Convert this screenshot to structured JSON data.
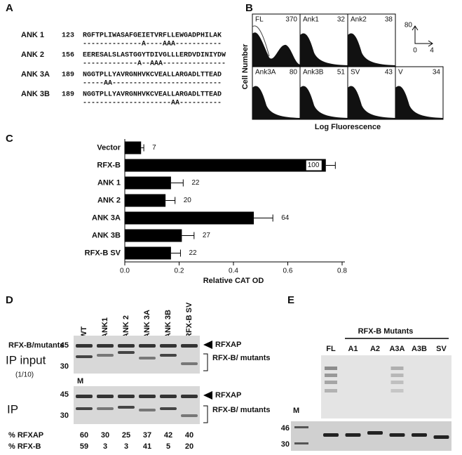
{
  "panel_labels": [
    "A",
    "B",
    "C",
    "D",
    "E"
  ],
  "panel_a": {
    "rows": [
      {
        "name": "ANK 1",
        "start": 123,
        "sequence": "RGFTPLIWASAFGEIETVRFLLEWGADPHILAK",
        "mutations": "--------------A----AAA-----------"
      },
      {
        "name": "ANK 2",
        "start": 156,
        "sequence": "EERESALSLASTGGYTDIVGLLLERDVDINIYDW",
        "mutations": "-------------A--AAA---------------"
      },
      {
        "name": "ANK 3A",
        "start": 189,
        "sequence": "NGGTPLLYAVRGNHVKCVEALLARGADLTTEAD",
        "mutations": "-----AA--------------------------"
      },
      {
        "name": "ANK 3B",
        "start": 189,
        "sequence": "NGGTPLLYAVRGNHVKCVEALLARGADLTTEAD",
        "mutations": "---------------------AA----------"
      }
    ]
  },
  "panel_b": {
    "y_label": "Cell Number",
    "x_label": "Log Fluorescence",
    "scale_y": 80,
    "scale_x_start": 0,
    "scale_x_end": 4,
    "histograms": [
      {
        "name": "FL",
        "count": 370
      },
      {
        "name": "Ank1",
        "count": 32
      },
      {
        "name": "Ank2",
        "count": 38
      },
      {
        "name": "Ank3A",
        "count": 80
      },
      {
        "name": "Ank3B",
        "count": 51
      },
      {
        "name": "SV",
        "count": 43
      },
      {
        "name": "V",
        "count": 34
      }
    ]
  },
  "chart_data": {
    "type": "bar",
    "orientation": "horizontal",
    "x_label": "Relative CAT OD",
    "categories": [
      "Vector",
      "RFX-B",
      "ANK 1",
      "ANK 2",
      "ANK 3A",
      "ANK 3B",
      "RFX-B SV"
    ],
    "values": [
      0.06,
      0.74,
      0.17,
      0.15,
      0.475,
      0.21,
      0.17
    ],
    "errors": [
      0.01,
      0.035,
      0.045,
      0.035,
      0.07,
      0.045,
      0.035
    ],
    "relative_percent": [
      7,
      100,
      22,
      20,
      64,
      27,
      22
    ],
    "color": "#000000",
    "xlim": [
      0,
      0.8
    ],
    "xticks": [
      {
        "value": 0,
        "label": "0.0"
      },
      0.2,
      0.4,
      0.6,
      0.8
    ]
  },
  "panel_d": {
    "construct_label": "RFX-B/mutants",
    "lanes": [
      "WT",
      "ANK1",
      "ANK 2",
      "ANK 3A",
      "ANK 3B",
      "RFX-B SV"
    ],
    "input_label": "IP input",
    "input_fraction": "(1/10)",
    "ip_label": "IP",
    "marker": "M",
    "mw": [
      45,
      30
    ],
    "band_rfxap": "RFXAP",
    "band_rfxb": "RFX-B/ mutants",
    "quant": [
      {
        "label": "% RFXAP",
        "values": [
          60,
          30,
          25,
          37,
          42,
          40
        ]
      },
      {
        "label": "% RFX-B",
        "values": [
          59,
          3,
          3,
          41,
          5,
          20
        ]
      }
    ]
  },
  "panel_e": {
    "group_label": "RFX-B Mutants",
    "lanes": [
      "FL",
      "A1",
      "A2",
      "A3A",
      "A3B",
      "SV"
    ],
    "marker": "M",
    "mw": [
      46,
      30
    ]
  }
}
